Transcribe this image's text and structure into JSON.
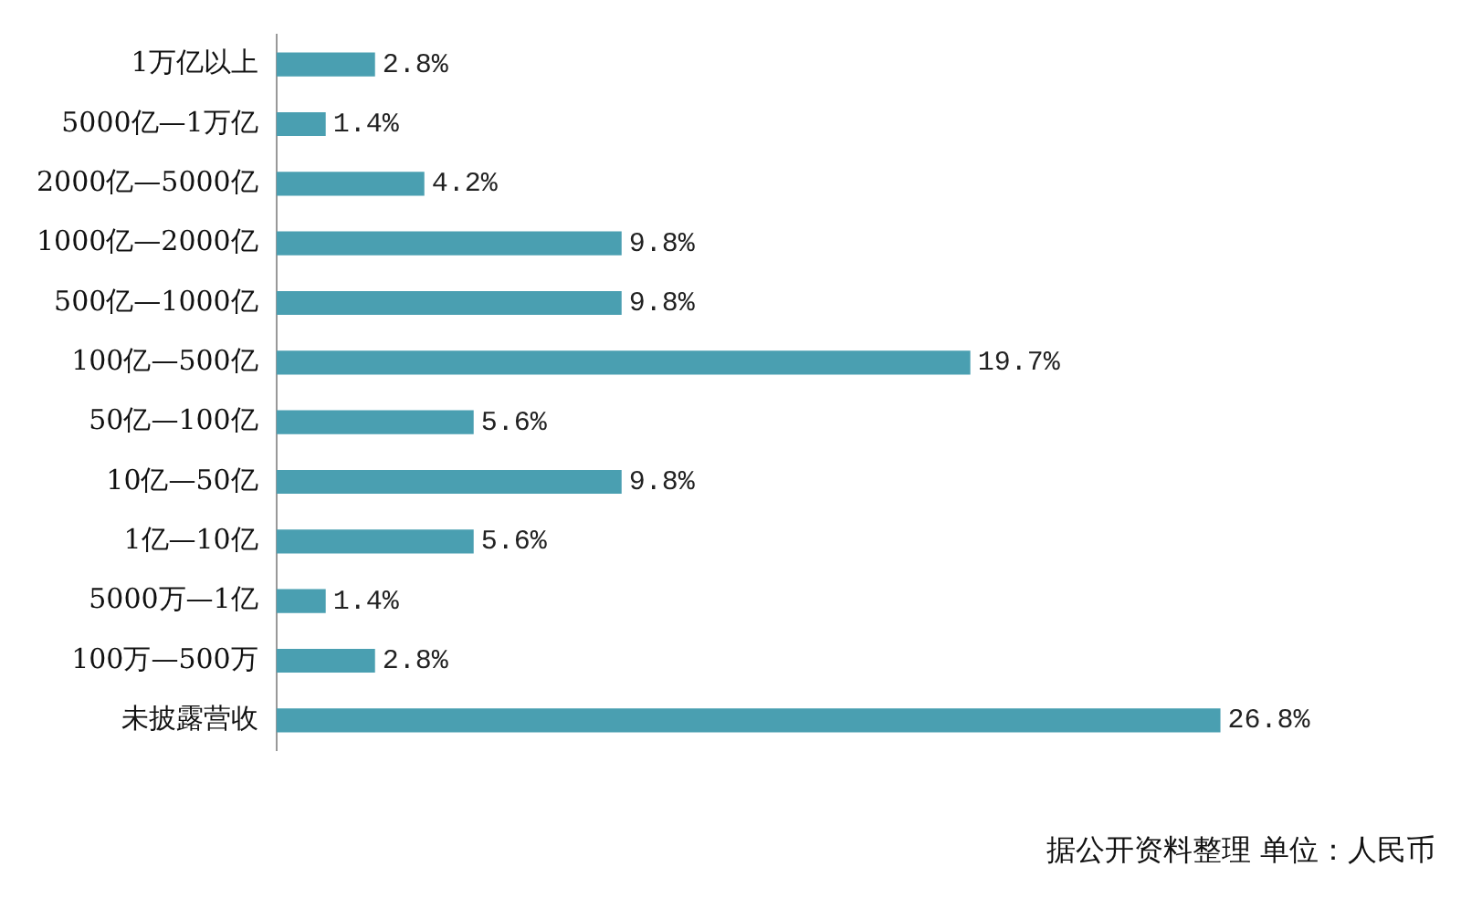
{
  "chart_data": {
    "type": "bar",
    "orientation": "horizontal",
    "categories": [
      "1万亿以上",
      "5000亿—1万亿",
      "2000亿—5000亿",
      "1000亿—2000亿",
      "500亿—1000亿",
      "100亿—500亿",
      "50亿—100亿",
      "10亿—50亿",
      "1亿—10亿",
      "5000万—1亿",
      "100万—500万",
      "未披露营收"
    ],
    "values": [
      2.8,
      1.4,
      4.2,
      9.8,
      9.8,
      19.7,
      5.6,
      9.8,
      5.6,
      1.4,
      2.8,
      26.8
    ],
    "value_labels": [
      "2.8%",
      "1.4%",
      "4.2%",
      "9.8%",
      "9.8%",
      "19.7%",
      "5.6%",
      "9.8%",
      "5.6%",
      "1.4%",
      "2.8%",
      "26.8%"
    ],
    "color": "#4a9fb1",
    "tick_labels": "y",
    "grid": false,
    "legend": false,
    "annotations": [
      "据公开资料整理 单位：人民币"
    ]
  }
}
